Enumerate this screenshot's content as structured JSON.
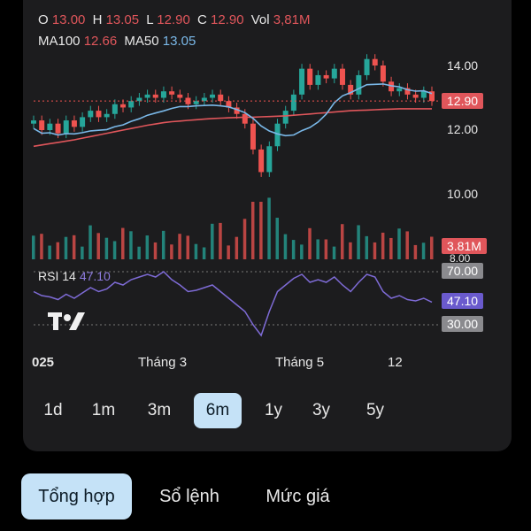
{
  "ohlc": {
    "o_label": "O",
    "o": "13.00",
    "h_label": "H",
    "h": "13.05",
    "l_label": "L",
    "l": "12.90",
    "c_label": "C",
    "c": "12.90",
    "vol_label": "Vol",
    "vol": "3,81M"
  },
  "ma": {
    "ma100_label": "MA100",
    "ma100": "12.66",
    "ma50_label": "MA50",
    "ma50": "13.05"
  },
  "price_axis": {
    "p14": "14.00",
    "p12": "12.00",
    "p10": "10.00",
    "p8": "8.00"
  },
  "tags": {
    "last_price": "12.90",
    "volume": "3.81M",
    "rsi_high": "70.00",
    "rsi_value": "47.10",
    "rsi_low": "30.00"
  },
  "rsi": {
    "label": "RSI 14",
    "value": "47.10"
  },
  "x_axis": {
    "a": "025",
    "b": "Tháng 3",
    "c": "Tháng 5",
    "d": "12"
  },
  "ranges": [
    {
      "label": "1d"
    },
    {
      "label": "1m"
    },
    {
      "label": "3m"
    },
    {
      "label": "6m"
    },
    {
      "label": "1y"
    },
    {
      "label": "3y"
    },
    {
      "label": "5y"
    }
  ],
  "active_range": "6m",
  "tabs": [
    {
      "label": "Tổng hợp"
    },
    {
      "label": "Sổ lệnh"
    },
    {
      "label": "Mức giá"
    }
  ],
  "colors": {
    "up": "#26a69a",
    "down": "#ef5350",
    "ma100": "#e0565b",
    "ma50": "#7ab8e8",
    "rsi": "#7e6bd6",
    "tab_active": "#c5e2f7"
  },
  "chart_data": {
    "type": "candlestick",
    "close": [
      12.3,
      12.0,
      12.2,
      11.9,
      12.3,
      12.1,
      12.4,
      12.6,
      12.4,
      12.5,
      12.8,
      12.7,
      12.9,
      13.0,
      13.1,
      13.0,
      13.2,
      13.1,
      13.0,
      12.8,
      12.9,
      13.0,
      13.1,
      12.9,
      12.7,
      12.5,
      12.2,
      11.4,
      10.7,
      11.5,
      12.2,
      12.6,
      13.1,
      13.9,
      13.4,
      13.7,
      13.6,
      13.9,
      13.4,
      13.1,
      13.7,
      14.2,
      14.0,
      13.5,
      13.2,
      13.3,
      13.1,
      13.0,
      13.2,
      12.9
    ],
    "ma100": [
      11.5,
      11.54,
      11.58,
      11.62,
      11.66,
      11.7,
      11.75,
      11.8,
      11.85,
      11.9,
      11.95,
      12.0,
      12.05,
      12.1,
      12.15,
      12.19,
      12.23,
      12.26,
      12.28,
      12.3,
      12.32,
      12.34,
      12.36,
      12.37,
      12.38,
      12.39,
      12.4,
      12.4,
      12.41,
      12.42,
      12.43,
      12.44,
      12.46,
      12.48,
      12.5,
      12.52,
      12.54,
      12.56,
      12.58,
      12.6,
      12.61,
      12.62,
      12.63,
      12.64,
      12.65,
      12.66,
      12.66,
      12.66,
      12.66,
      12.66
    ],
    "rsi": [
      55,
      52,
      51,
      49,
      53,
      50,
      54,
      58,
      55,
      57,
      62,
      60,
      64,
      66,
      68,
      66,
      70,
      64,
      60,
      55,
      56,
      58,
      60,
      55,
      50,
      45,
      40,
      30,
      22,
      40,
      55,
      60,
      65,
      68,
      62,
      64,
      62,
      66,
      60,
      55,
      62,
      68,
      66,
      55,
      50,
      52,
      49,
      48,
      50,
      47.1
    ],
    "volume_last": "3.81M",
    "ylim": [
      8,
      14.6
    ],
    "rsi_levels": [
      30,
      70
    ]
  }
}
